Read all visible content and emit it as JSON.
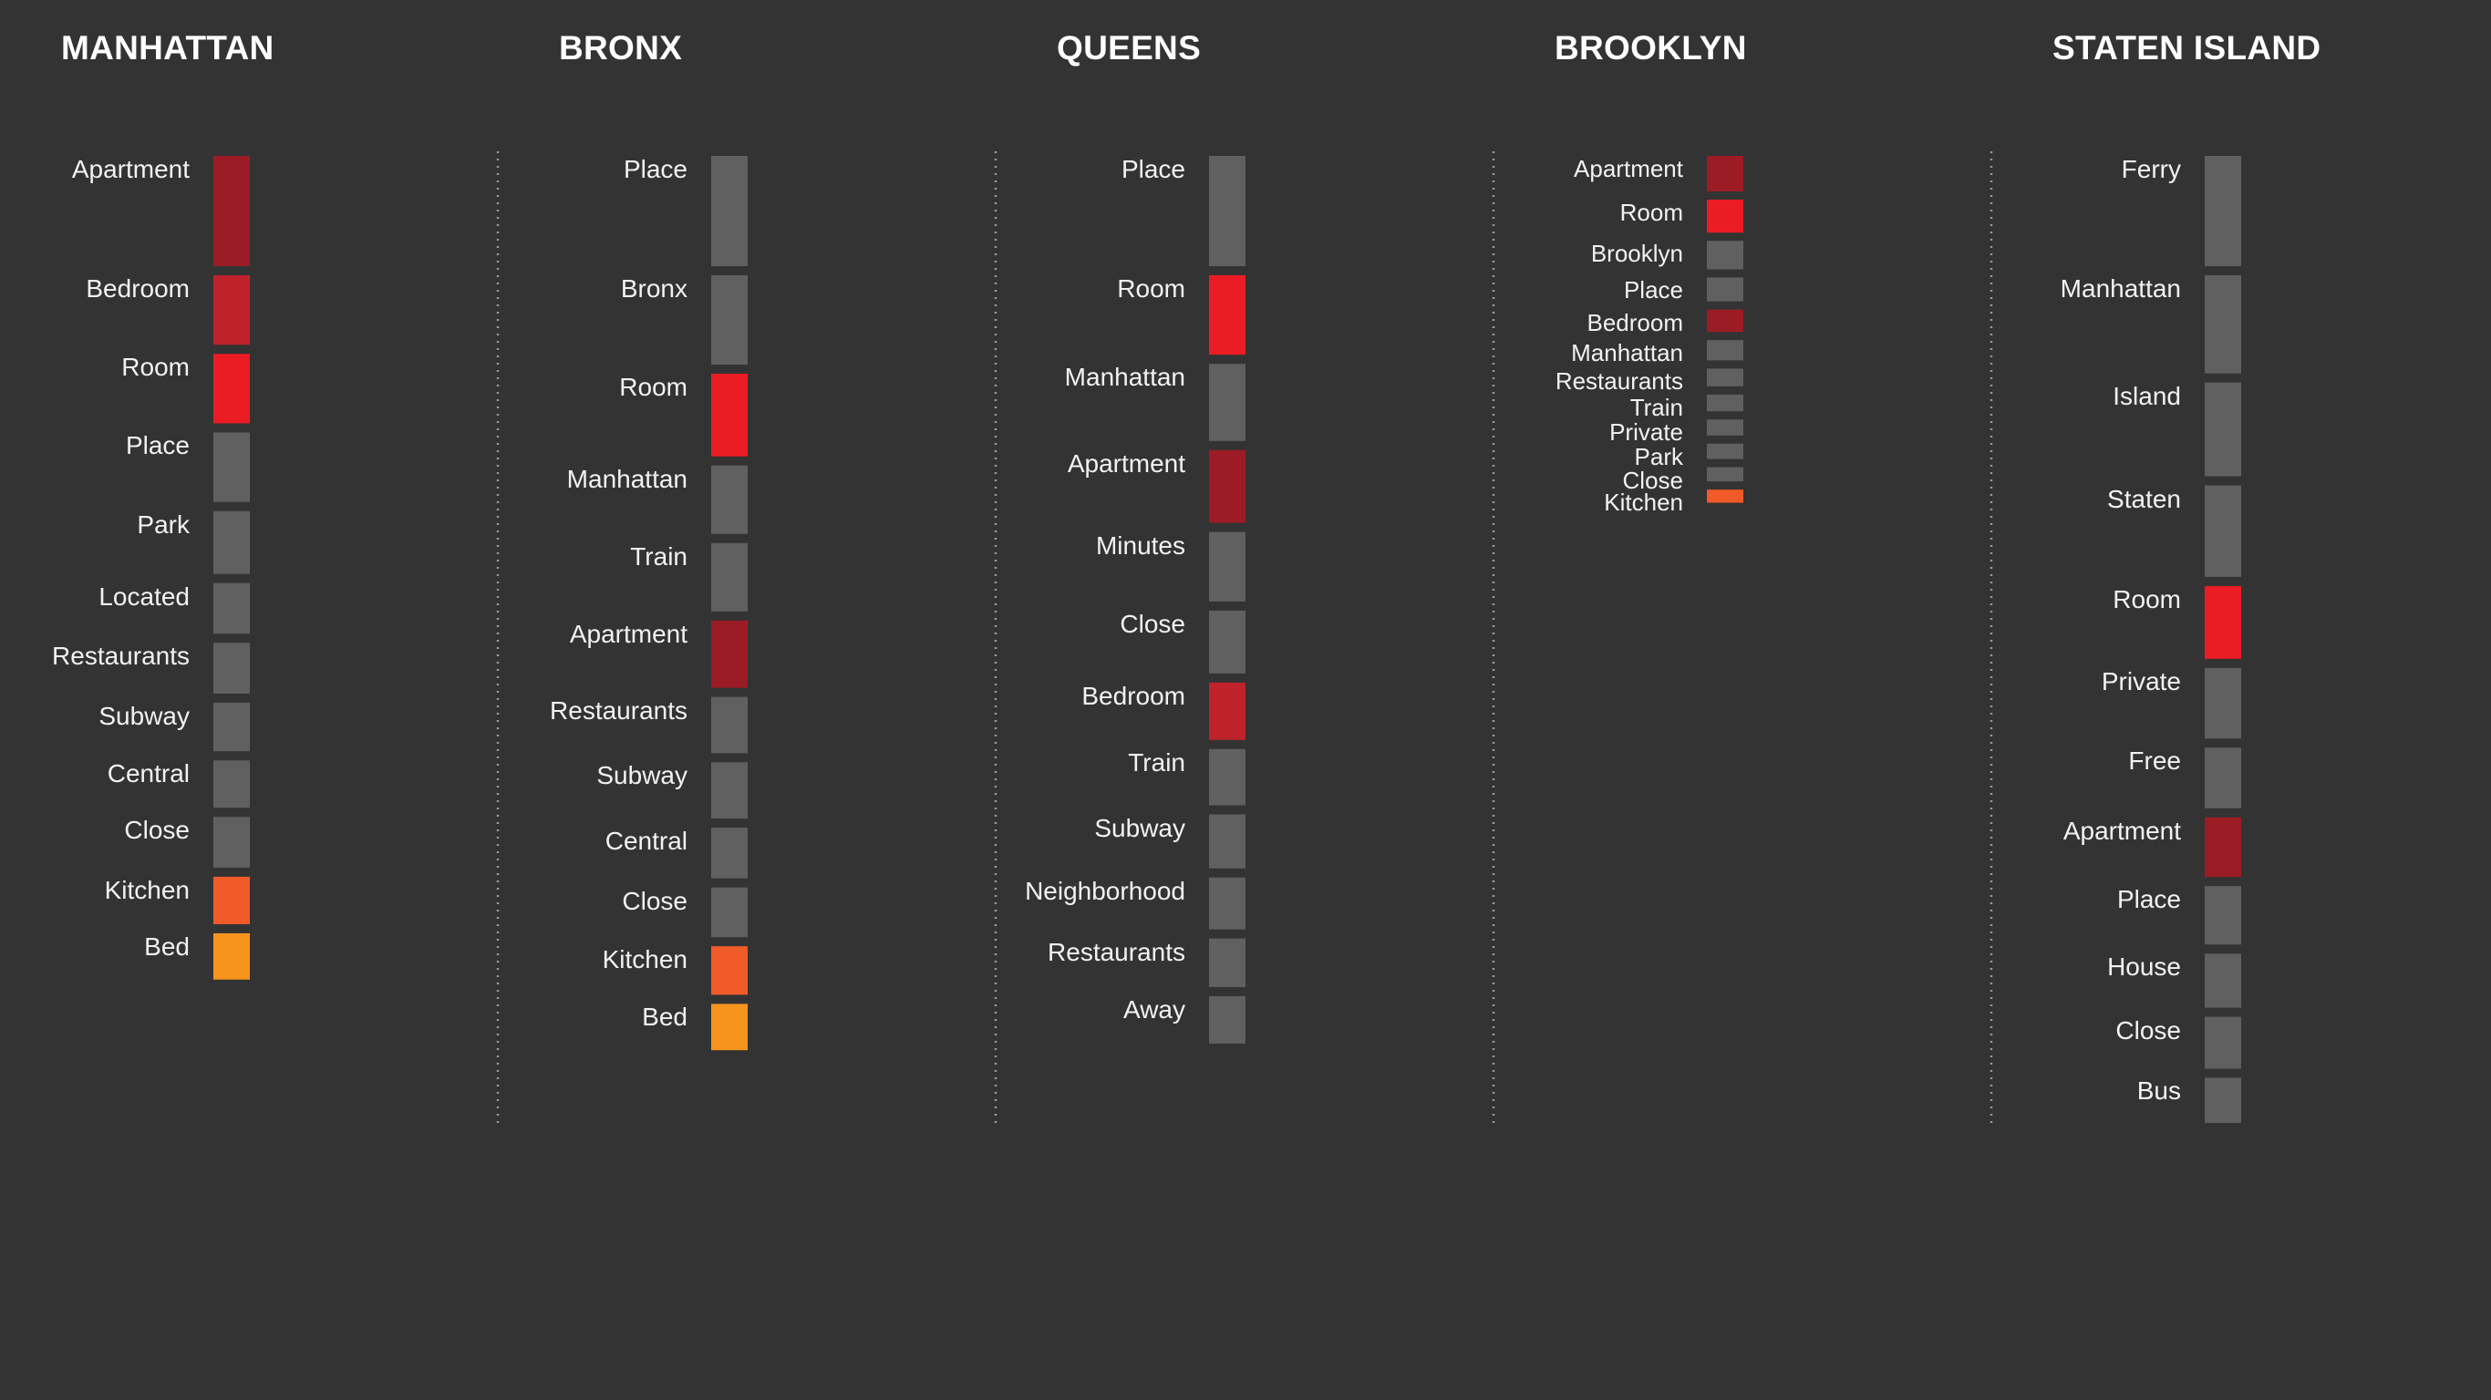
{
  "colors": {
    "background": "#333333",
    "neutral": "#606060",
    "apartment": "#9c1c26",
    "bedroom": "#bf222b",
    "room": "#ec1c24",
    "kitchen": "#f15a29",
    "bed": "#f7941d",
    "title": "#ffffff",
    "label": "#f2f2f2"
  },
  "chart_data": {
    "type": "bar",
    "boroughs": [
      {
        "name": "MANHATTAN",
        "words": [
          {
            "label": "Apartment",
            "value": 100,
            "color": "apartment"
          },
          {
            "label": "Bedroom",
            "value": 63,
            "color": "bedroom"
          },
          {
            "label": "Room",
            "value": 63,
            "color": "room"
          },
          {
            "label": "Place",
            "value": 63,
            "color": "neutral"
          },
          {
            "label": "Park",
            "value": 57,
            "color": "neutral"
          },
          {
            "label": "Located",
            "value": 46,
            "color": "neutral"
          },
          {
            "label": "Restaurants",
            "value": 46,
            "color": "neutral"
          },
          {
            "label": "Subway",
            "value": 44,
            "color": "neutral"
          },
          {
            "label": "Central",
            "value": 43,
            "color": "neutral"
          },
          {
            "label": "Close",
            "value": 46,
            "color": "neutral"
          },
          {
            "label": "Kitchen",
            "value": 43,
            "color": "kitchen"
          },
          {
            "label": "Bed",
            "value": 42,
            "color": "bed"
          }
        ]
      },
      {
        "name": "BRONX",
        "words": [
          {
            "label": "Place",
            "value": 100,
            "color": "neutral"
          },
          {
            "label": "Bronx",
            "value": 81,
            "color": "neutral"
          },
          {
            "label": "Room",
            "value": 75,
            "color": "room"
          },
          {
            "label": "Manhattan",
            "value": 62,
            "color": "neutral"
          },
          {
            "label": "Train",
            "value": 62,
            "color": "neutral"
          },
          {
            "label": "Apartment",
            "value": 61,
            "color": "apartment"
          },
          {
            "label": "Restaurants",
            "value": 51,
            "color": "neutral"
          },
          {
            "label": "Subway",
            "value": 51,
            "color": "neutral"
          },
          {
            "label": "Central",
            "value": 46,
            "color": "neutral"
          },
          {
            "label": "Close",
            "value": 45,
            "color": "neutral"
          },
          {
            "label": "Kitchen",
            "value": 44,
            "color": "kitchen"
          },
          {
            "label": "Bed",
            "value": 42,
            "color": "bed"
          }
        ]
      },
      {
        "name": "QUEENS",
        "words": [
          {
            "label": "Place",
            "value": 100,
            "color": "neutral"
          },
          {
            "label": "Room",
            "value": 72,
            "color": "room"
          },
          {
            "label": "Manhattan",
            "value": 70,
            "color": "neutral"
          },
          {
            "label": "Apartment",
            "value": 66,
            "color": "apartment"
          },
          {
            "label": "Minutes",
            "value": 63,
            "color": "neutral"
          },
          {
            "label": "Close",
            "value": 57,
            "color": "neutral"
          },
          {
            "label": "Bedroom",
            "value": 52,
            "color": "bedroom"
          },
          {
            "label": "Train",
            "value": 51,
            "color": "neutral"
          },
          {
            "label": "Subway",
            "value": 49,
            "color": "neutral"
          },
          {
            "label": "Neighborhood",
            "value": 47,
            "color": "neutral"
          },
          {
            "label": "Restaurants",
            "value": 44,
            "color": "neutral"
          },
          {
            "label": "Away",
            "value": 43,
            "color": "neutral"
          }
        ]
      },
      {
        "name": "BROOKLYN",
        "words": [
          {
            "label": "Apartment",
            "value": 100,
            "color": "apartment"
          },
          {
            "label": "Room",
            "value": 93,
            "color": "room"
          },
          {
            "label": "Brooklyn",
            "value": 80,
            "color": "neutral"
          },
          {
            "label": "Place",
            "value": 67,
            "color": "neutral"
          },
          {
            "label": "Bedroom",
            "value": 63,
            "color": "apartment"
          },
          {
            "label": "Manhattan",
            "value": 57,
            "color": "neutral"
          },
          {
            "label": "Restaurants",
            "value": 50,
            "color": "neutral"
          },
          {
            "label": "Train",
            "value": 47,
            "color": "neutral"
          },
          {
            "label": "Private",
            "value": 45,
            "color": "neutral"
          },
          {
            "label": "Park",
            "value": 43,
            "color": "neutral"
          },
          {
            "label": "Close",
            "value": 40,
            "color": "neutral"
          },
          {
            "label": "Kitchen",
            "value": 37,
            "color": "kitchen"
          }
        ]
      },
      {
        "name": "STATEN ISLAND",
        "words": [
          {
            "label": "Ferry",
            "value": 100,
            "color": "neutral"
          },
          {
            "label": "Manhattan",
            "value": 89,
            "color": "neutral"
          },
          {
            "label": "Island",
            "value": 85,
            "color": "neutral"
          },
          {
            "label": "Staten",
            "value": 83,
            "color": "neutral"
          },
          {
            "label": "Room",
            "value": 66,
            "color": "room"
          },
          {
            "label": "Private",
            "value": 64,
            "color": "neutral"
          },
          {
            "label": "Free",
            "value": 55,
            "color": "neutral"
          },
          {
            "label": "Apartment",
            "value": 54,
            "color": "apartment"
          },
          {
            "label": "Place",
            "value": 53,
            "color": "neutral"
          },
          {
            "label": "House",
            "value": 49,
            "color": "neutral"
          },
          {
            "label": "Close",
            "value": 47,
            "color": "neutral"
          },
          {
            "label": "Bus",
            "value": 41,
            "color": "neutral"
          }
        ]
      }
    ]
  }
}
